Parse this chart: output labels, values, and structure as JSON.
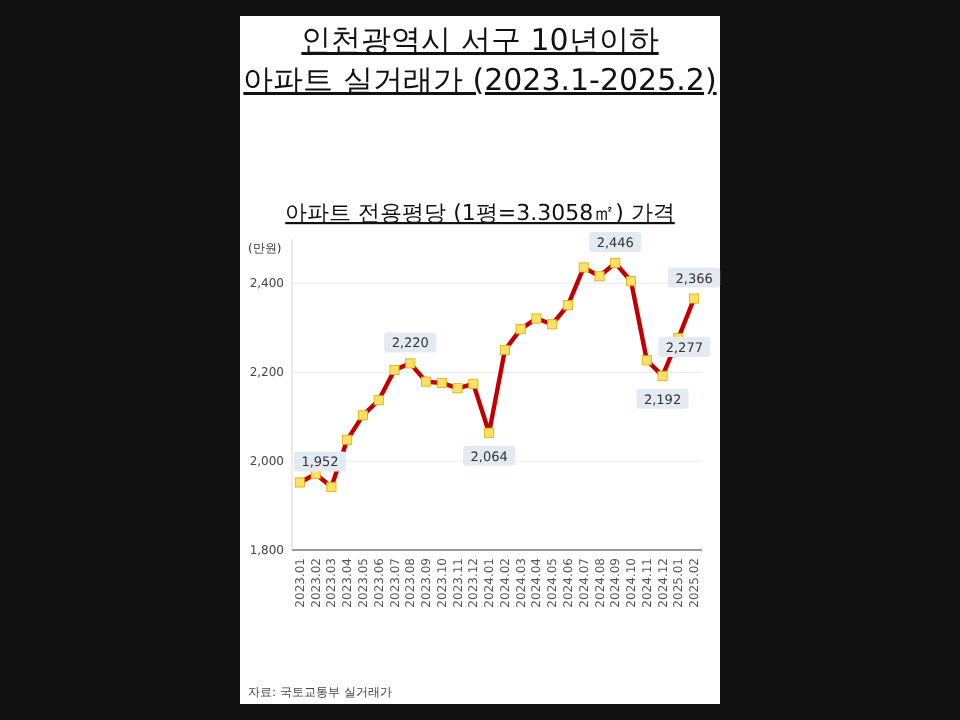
{
  "chart_data": {
    "type": "line",
    "title": "인천광역시 서구 10년이하\n아파트 실거래가 (2023.1-2025.2)",
    "subtitle": "아파트 전용평당 (1평=3.3058㎡) 가격",
    "ylabel": "(만원)",
    "annotations": [
      "자료: 국토교통부  실거래가"
    ],
    "categories": [
      "2023.01",
      "2023.02",
      "2023.03",
      "2023.04",
      "2023.05",
      "2023.06",
      "2023.07",
      "2023.08",
      "2023.09",
      "2023.10",
      "2023.11",
      "2023.12",
      "2024.01",
      "2024.02",
      "2024.03",
      "2024.04",
      "2024.05",
      "2024.06",
      "2024.07",
      "2024.08",
      "2024.09",
      "2024.10",
      "2024.11",
      "2024.12",
      "2025.01",
      "2025.02"
    ],
    "series": [
      {
        "color": "#c00000",
        "values": [
          1952,
          1971,
          1942,
          2048,
          2103,
          2137,
          2205,
          2220,
          2179,
          2176,
          2164,
          2174,
          2064,
          2250,
          2297,
          2321,
          2308,
          2351,
          2436,
          2416,
          2446,
          2405,
          2227,
          2192,
          2277,
          2366
        ],
        "value_labels": [
          "1,952",
          null,
          null,
          null,
          null,
          null,
          null,
          "2,220",
          null,
          null,
          null,
          null,
          "2,064",
          null,
          null,
          null,
          null,
          null,
          null,
          null,
          "2,446",
          null,
          null,
          "2,192",
          "2,277",
          "2,366"
        ]
      }
    ],
    "ylim": [
      1800,
      2500
    ],
    "yticks": [
      {
        "value": 1800,
        "label": "1,800"
      },
      {
        "value": 2000,
        "label": "2,000"
      },
      {
        "value": 2200,
        "label": "2,200"
      },
      {
        "value": 2400,
        "label": "2,400"
      }
    ],
    "grid": "y",
    "marker": "square",
    "line_style": "solid"
  }
}
